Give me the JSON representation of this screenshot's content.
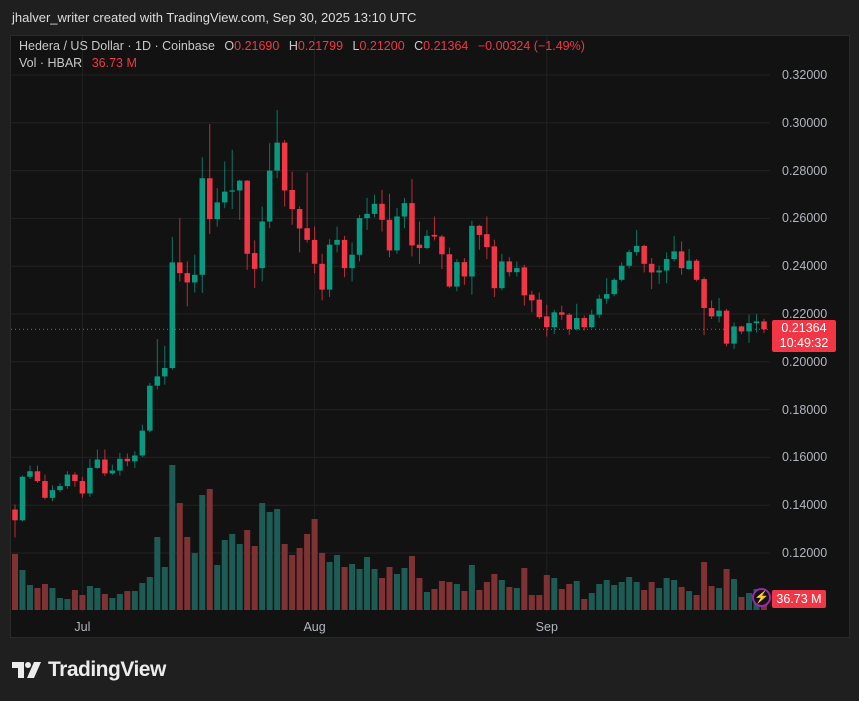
{
  "credit": "jhalver_writer created with TradingView.com, Sep 30, 2025 13:10 UTC",
  "legend": {
    "symbol": "Hedera / US Dollar · 1D · Coinbase",
    "o_label": "O",
    "o": "0.21690",
    "h_label": "H",
    "h": "0.21799",
    "l_label": "L",
    "l": "0.21200",
    "c_label": "C",
    "c": "0.21364",
    "change": "−0.00324 (−1.49%)",
    "vol_label": "Vol · HBAR",
    "vol": "36.73 M"
  },
  "price_label": {
    "price": "0.21364",
    "countdown": "10:49:32"
  },
  "volume_label": "36.73 M",
  "logo_text": "TradingView",
  "colors": {
    "up": "#089981",
    "down": "#f23645",
    "up_volume": "#1d5c55",
    "down_volume": "#7f3234",
    "background": "#121212",
    "alert_icon": "#9c27b0"
  },
  "chart_data": {
    "type": "candlestick",
    "grid": true,
    "ylim": [
      0.12,
      0.32
    ],
    "y_tick_labels": [
      "0.32000",
      "0.30000",
      "0.28000",
      "0.26000",
      "0.24000",
      "0.22000",
      "0.20000",
      "0.18000",
      "0.16000",
      "0.14000",
      "0.12000"
    ],
    "y_tick_values": [
      0.32,
      0.3,
      0.28,
      0.26,
      0.24,
      0.22,
      0.2,
      0.18,
      0.16,
      0.14,
      0.12
    ],
    "x_tick_labels": [
      "Jul",
      "Aug",
      "Sep"
    ],
    "x_tick_dates": [
      "2025-07-01",
      "2025-08-01",
      "2025-09-01"
    ],
    "last_price": 0.21364,
    "dates": [
      "2025-06-22",
      "2025-06-23",
      "2025-06-24",
      "2025-06-25",
      "2025-06-26",
      "2025-06-27",
      "2025-06-28",
      "2025-06-29",
      "2025-06-30",
      "2025-07-01",
      "2025-07-02",
      "2025-07-03",
      "2025-07-04",
      "2025-07-05",
      "2025-07-06",
      "2025-07-07",
      "2025-07-08",
      "2025-07-09",
      "2025-07-10",
      "2025-07-11",
      "2025-07-12",
      "2025-07-13",
      "2025-07-14",
      "2025-07-15",
      "2025-07-16",
      "2025-07-17",
      "2025-07-18",
      "2025-07-19",
      "2025-07-20",
      "2025-07-21",
      "2025-07-22",
      "2025-07-23",
      "2025-07-24",
      "2025-07-25",
      "2025-07-26",
      "2025-07-27",
      "2025-07-28",
      "2025-07-29",
      "2025-07-30",
      "2025-07-31",
      "2025-08-01",
      "2025-08-02",
      "2025-08-03",
      "2025-08-04",
      "2025-08-05",
      "2025-08-06",
      "2025-08-07",
      "2025-08-08",
      "2025-08-09",
      "2025-08-10",
      "2025-08-11",
      "2025-08-12",
      "2025-08-13",
      "2025-08-14",
      "2025-08-15",
      "2025-08-16",
      "2025-08-17",
      "2025-08-18",
      "2025-08-19",
      "2025-08-20",
      "2025-08-21",
      "2025-08-22",
      "2025-08-23",
      "2025-08-24",
      "2025-08-25",
      "2025-08-26",
      "2025-08-27",
      "2025-08-28",
      "2025-08-29",
      "2025-08-30",
      "2025-08-31",
      "2025-09-01",
      "2025-09-02",
      "2025-09-03",
      "2025-09-04",
      "2025-09-05",
      "2025-09-06",
      "2025-09-07",
      "2025-09-08",
      "2025-09-09",
      "2025-09-10",
      "2025-09-11",
      "2025-09-12",
      "2025-09-13",
      "2025-09-14",
      "2025-09-15",
      "2025-09-16",
      "2025-09-17",
      "2025-09-18",
      "2025-09-19",
      "2025-09-20",
      "2025-09-21",
      "2025-09-22",
      "2025-09-23",
      "2025-09-24",
      "2025-09-25",
      "2025-09-26",
      "2025-09-27",
      "2025-09-28",
      "2025-09-29",
      "2025-09-30"
    ],
    "ohlc": [
      [
        0.1382,
        0.1403,
        0.1265,
        0.1337
      ],
      [
        0.1337,
        0.1524,
        0.1333,
        0.1519
      ],
      [
        0.1519,
        0.1566,
        0.151,
        0.1542
      ],
      [
        0.1542,
        0.1566,
        0.1494,
        0.1501
      ],
      [
        0.1501,
        0.1528,
        0.1424,
        0.1431
      ],
      [
        0.1431,
        0.1483,
        0.1417,
        0.1463
      ],
      [
        0.1463,
        0.1491,
        0.1455,
        0.148
      ],
      [
        0.148,
        0.1542,
        0.1469,
        0.1528
      ],
      [
        0.1528,
        0.1538,
        0.1477,
        0.1501
      ],
      [
        0.1501,
        0.1519,
        0.1431,
        0.1449
      ],
      [
        0.1449,
        0.1594,
        0.1435,
        0.1556
      ],
      [
        0.1556,
        0.1633,
        0.1552,
        0.1591
      ],
      [
        0.1591,
        0.1633,
        0.1522,
        0.1533
      ],
      [
        0.1533,
        0.157,
        0.1528,
        0.1545
      ],
      [
        0.1545,
        0.1619,
        0.1524,
        0.1594
      ],
      [
        0.1594,
        0.1616,
        0.1563,
        0.1584
      ],
      [
        0.1584,
        0.1626,
        0.1556,
        0.1608
      ],
      [
        0.1608,
        0.1737,
        0.1602,
        0.1712
      ],
      [
        0.1712,
        0.1911,
        0.1705,
        0.19
      ],
      [
        0.19,
        0.2095,
        0.1884,
        0.1939
      ],
      [
        0.1939,
        0.2067,
        0.1904,
        0.1974
      ],
      [
        0.1974,
        0.2522,
        0.1967,
        0.2416
      ],
      [
        0.2416,
        0.2601,
        0.2336,
        0.2371
      ],
      [
        0.2371,
        0.242,
        0.2232,
        0.2332
      ],
      [
        0.2332,
        0.2448,
        0.229,
        0.2364
      ],
      [
        0.2364,
        0.2856,
        0.2288,
        0.2768
      ],
      [
        0.2768,
        0.2995,
        0.2535,
        0.2597
      ],
      [
        0.2597,
        0.2727,
        0.2566,
        0.2667
      ],
      [
        0.2667,
        0.2838,
        0.2643,
        0.2712
      ],
      [
        0.2712,
        0.2887,
        0.2639,
        0.2717
      ],
      [
        0.2717,
        0.2762,
        0.2594,
        0.2758
      ],
      [
        0.2758,
        0.276,
        0.2385,
        0.2452
      ],
      [
        0.2455,
        0.2508,
        0.2309,
        0.2389
      ],
      [
        0.2392,
        0.265,
        0.2336,
        0.2587
      ],
      [
        0.2587,
        0.2915,
        0.2559,
        0.28
      ],
      [
        0.28,
        0.3054,
        0.2768,
        0.2917
      ],
      [
        0.2917,
        0.2928,
        0.265,
        0.2717
      ],
      [
        0.2719,
        0.2796,
        0.2573,
        0.2639
      ],
      [
        0.2639,
        0.265,
        0.2458,
        0.2558
      ],
      [
        0.2559,
        0.2792,
        0.2499,
        0.251
      ],
      [
        0.251,
        0.2566,
        0.2371,
        0.241
      ],
      [
        0.241,
        0.2452,
        0.2257,
        0.2302
      ],
      [
        0.2302,
        0.2513,
        0.2271,
        0.249
      ],
      [
        0.249,
        0.2566,
        0.2458,
        0.251
      ],
      [
        0.251,
        0.2527,
        0.2354,
        0.2392
      ],
      [
        0.2392,
        0.2499,
        0.2336,
        0.2448
      ],
      [
        0.2448,
        0.2615,
        0.242,
        0.2601
      ],
      [
        0.2601,
        0.2686,
        0.2552,
        0.2619
      ],
      [
        0.2619,
        0.2699,
        0.2605,
        0.2661
      ],
      [
        0.2661,
        0.2719,
        0.2545,
        0.2594
      ],
      [
        0.2594,
        0.2703,
        0.2438,
        0.2466
      ],
      [
        0.2466,
        0.2643,
        0.2452,
        0.2608
      ],
      [
        0.2608,
        0.2685,
        0.2559,
        0.2664
      ],
      [
        0.2664,
        0.2765,
        0.2441,
        0.2487
      ],
      [
        0.249,
        0.2587,
        0.2409,
        0.2476
      ],
      [
        0.2476,
        0.2552,
        0.2471,
        0.2527
      ],
      [
        0.2531,
        0.2608,
        0.2508,
        0.2524
      ],
      [
        0.2524,
        0.2531,
        0.2388,
        0.245
      ],
      [
        0.245,
        0.2478,
        0.2308,
        0.2315
      ],
      [
        0.2315,
        0.243,
        0.2295,
        0.2417
      ],
      [
        0.2417,
        0.2434,
        0.2322,
        0.2357
      ],
      [
        0.2357,
        0.259,
        0.2281,
        0.2569
      ],
      [
        0.2569,
        0.2573,
        0.2469,
        0.2531
      ],
      [
        0.2534,
        0.2608,
        0.243,
        0.248
      ],
      [
        0.2483,
        0.2511,
        0.2271,
        0.2308
      ],
      [
        0.2308,
        0.2452,
        0.2299,
        0.242
      ],
      [
        0.242,
        0.2438,
        0.2357,
        0.2375
      ],
      [
        0.2375,
        0.242,
        0.2357,
        0.2392
      ],
      [
        0.2395,
        0.2406,
        0.2235,
        0.2278
      ],
      [
        0.2281,
        0.2297,
        0.2207,
        0.2257
      ],
      [
        0.226,
        0.229,
        0.2179,
        0.2187
      ],
      [
        0.219,
        0.2239,
        0.2106,
        0.2145
      ],
      [
        0.2145,
        0.2218,
        0.2116,
        0.2207
      ],
      [
        0.2207,
        0.2235,
        0.2176,
        0.2197
      ],
      [
        0.2197,
        0.2204,
        0.2113,
        0.2137
      ],
      [
        0.2137,
        0.2243,
        0.2131,
        0.2183
      ],
      [
        0.2183,
        0.2193,
        0.2131,
        0.2145
      ],
      [
        0.2145,
        0.2218,
        0.2141,
        0.2197
      ],
      [
        0.2197,
        0.2281,
        0.2183,
        0.2264
      ],
      [
        0.2264,
        0.235,
        0.2243,
        0.2283
      ],
      [
        0.2283,
        0.235,
        0.2274,
        0.2343
      ],
      [
        0.2343,
        0.2416,
        0.2336,
        0.2402
      ],
      [
        0.2402,
        0.2469,
        0.2392,
        0.2459
      ],
      [
        0.2459,
        0.2552,
        0.2444,
        0.2485
      ],
      [
        0.2485,
        0.249,
        0.2374,
        0.241
      ],
      [
        0.241,
        0.2434,
        0.2304,
        0.2374
      ],
      [
        0.2374,
        0.2402,
        0.2326,
        0.2382
      ],
      [
        0.2382,
        0.2458,
        0.2329,
        0.243
      ],
      [
        0.243,
        0.2527,
        0.242,
        0.2462
      ],
      [
        0.2462,
        0.2504,
        0.2364,
        0.2392
      ],
      [
        0.2388,
        0.2472,
        0.2385,
        0.2423
      ],
      [
        0.2423,
        0.243,
        0.2336,
        0.2343
      ],
      [
        0.2346,
        0.2354,
        0.2111,
        0.2225
      ],
      [
        0.2225,
        0.2257,
        0.2179,
        0.219
      ],
      [
        0.219,
        0.2267,
        0.2165,
        0.2214
      ],
      [
        0.2214,
        0.2221,
        0.2065,
        0.2076
      ],
      [
        0.2076,
        0.2165,
        0.2053,
        0.2148
      ],
      [
        0.2148,
        0.2151,
        0.2116,
        0.2127
      ],
      [
        0.2127,
        0.2197,
        0.2079,
        0.2162
      ],
      [
        0.2162,
        0.22,
        0.2123,
        0.2169
      ],
      [
        0.2169,
        0.218,
        0.212,
        0.2136
      ]
    ],
    "volume_unit": "M",
    "volume": [
      121.0,
      86.4,
      54.0,
      47.5,
      56.2,
      47.5,
      25.9,
      23.8,
      43.2,
      32.4,
      51.8,
      47.5,
      34.6,
      25.9,
      34.6,
      41.0,
      41.0,
      58.3,
      71.3,
      157.7,
      92.9,
      313.2,
      231.1,
      157.7,
      123.1,
      248.4,
      261.4,
      97.2,
      151.2,
      164.2,
      142.6,
      172.8,
      138.2,
      231.1,
      211.7,
      218.2,
      142.6,
      118.8,
      133.9,
      164.2,
      196.6,
      123.1,
      103.7,
      118.8,
      92.9,
      99.4,
      88.6,
      114.5,
      88.6,
      69.1,
      92.9,
      77.8,
      90.7,
      116.6,
      69.1,
      38.9,
      45.4,
      62.6,
      60.5,
      56.2,
      41.0,
      97.2,
      43.2,
      60.5,
      77.8,
      64.8,
      49.7,
      47.5,
      90.7,
      32.4,
      32.4,
      75.6,
      69.1,
      45.4,
      56.2,
      62.6,
      23.8,
      36.7,
      56.2,
      64.8,
      54.0,
      60.5,
      71.3,
      60.5,
      43.2,
      60.5,
      47.5,
      69.1,
      64.8,
      49.7,
      41.0,
      32.4,
      103.7,
      51.8,
      47.5,
      88.6,
      67.0,
      28.1,
      36.7,
      45.4,
      36.73
    ]
  }
}
